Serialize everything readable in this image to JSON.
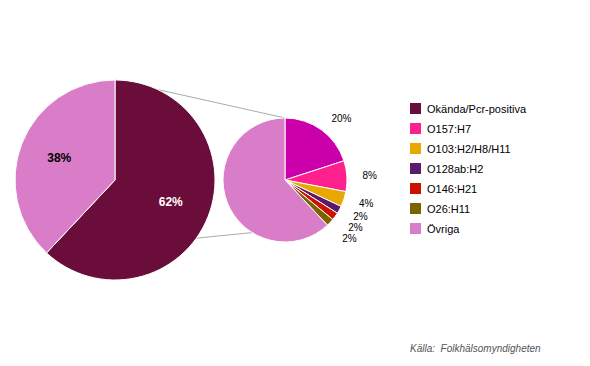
{
  "chart_data": [
    {
      "type": "pie",
      "values": [
        62,
        38
      ],
      "value_labels": [
        "62%",
        "38%"
      ],
      "colors": [
        "#6B0D3A",
        "#D97DC8"
      ],
      "data_labels": true
    },
    {
      "type": "pie",
      "values": [
        20,
        8,
        4,
        2,
        2,
        2,
        62
      ],
      "value_labels": [
        "20%",
        "8%",
        "4%",
        "2%",
        "2%",
        "2%",
        null
      ],
      "colors": [
        "#CC00AA",
        "#FF2090",
        "#E8A800",
        "#5B1A6B",
        "#CC1100",
        "#7A6400",
        "#D97DC8"
      ],
      "data_labels": true,
      "series": [
        {
          "name": "Okända/Pcr-positiva",
          "color": "#6B0D3A"
        },
        {
          "name": "O157:H7",
          "color": "#FF2090"
        },
        {
          "name": "O103:H2/H8/H11",
          "color": "#E8A800"
        },
        {
          "name": "O128ab:H2",
          "color": "#5B1A6B"
        },
        {
          "name": "O146:H21",
          "color": "#CC1100"
        },
        {
          "name": "O26:H11",
          "color": "#7A6400"
        },
        {
          "name": "Övriga",
          "color": "#D97DC8"
        }
      ],
      "legend": "right",
      "annotations": [
        "Källa:  Folkhälsomyndigheten"
      ]
    }
  ]
}
